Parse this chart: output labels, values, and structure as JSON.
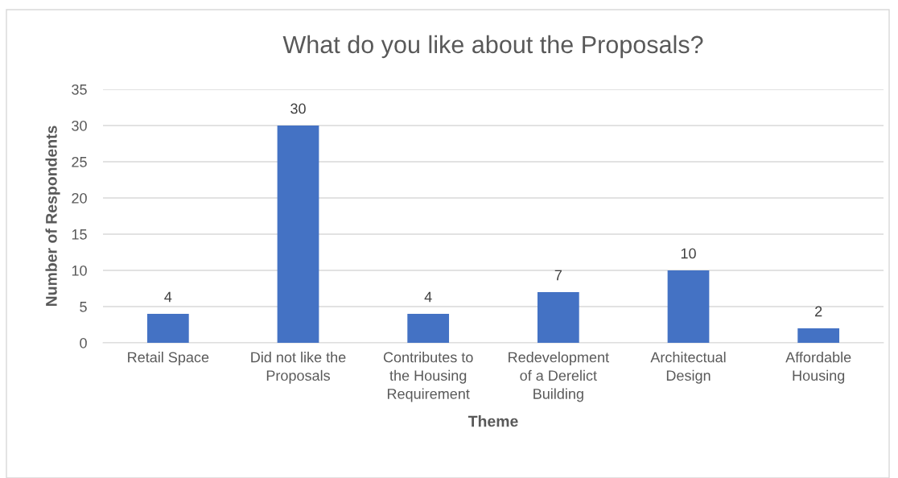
{
  "chart_data": {
    "type": "bar",
    "title": "What do you like about the Proposals?",
    "xlabel": "Theme",
    "ylabel": "Number of Respondents",
    "categories": [
      "Retail Space",
      "Did not like the\nProposals",
      "Contributes to\nthe Housing\nRequirement",
      "Redevelopment\nof a Derelict\nBuilding",
      "Architectual\nDesign",
      "Affordable\nHousing"
    ],
    "values": [
      4,
      30,
      4,
      7,
      10,
      2
    ],
    "color": "#4472c4",
    "ylim": [
      0,
      35
    ],
    "yticks": [
      0,
      5,
      10,
      15,
      20,
      25,
      30,
      35
    ],
    "grid": "y",
    "data_labels": true
  }
}
